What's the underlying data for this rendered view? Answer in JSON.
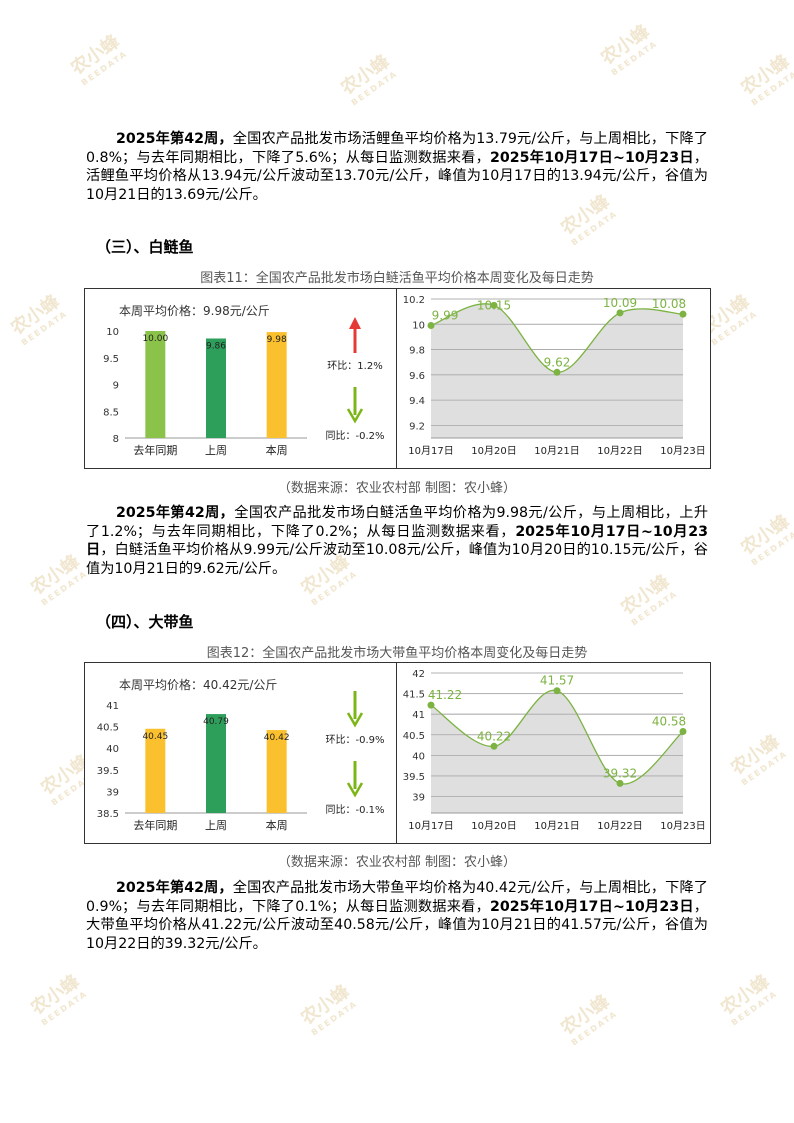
{
  "watermark": {
    "text": "农小蜂",
    "sub": "BEEDATA"
  },
  "para1": {
    "lead": "2025年第42周，",
    "t1": "全国农产品批发市场活鲤鱼平均价格为13.79元/公斤，与上周相比，下降了0.8%；与去年同期相比，下降了5.6%；从每日监测数据来看，",
    "range": "2025年10月17日~10月23日",
    "t2": "，活鲤鱼平均价格从13.94元/公斤波动至13.70元/公斤，峰值为10月17日的13.94元/公斤，谷值为10月21日的13.69元/公斤。"
  },
  "section3": {
    "heading": "（三）、白鲢鱼",
    "caption": "图表11：全国农产品批发市场白鲢活鱼平均价格本周变化及每日走势",
    "source": "（数据来源：农业农村部   制图：农小蜂）",
    "para": {
      "lead": "2025年第42周，",
      "t1": "全国农产品批发市场白鲢活鱼平均价格为9.98元/公斤，与上周相比，上升了1.2%；与去年同期相比，下降了0.2%；从每日监测数据来看，",
      "range": "2025年10月17日~10月23日",
      "t2": "，白鲢活鱼平均价格从9.99元/公斤波动至10.08元/公斤，峰值为10月20日的10.15元/公斤，谷值为10月21日的9.62元/公斤。"
    }
  },
  "section4": {
    "heading": "（四）、大带鱼",
    "caption": "图表12：全国农产品批发市场大带鱼平均价格本周变化及每日走势",
    "source": "（数据来源：农业农村部   制图：农小蜂）",
    "para": {
      "lead": "2025年第42周，",
      "t1": "全国农产品批发市场大带鱼平均价格为40.42元/公斤，与上周相比，下降了0.9%；与去年同期相比，下降了0.1%；从每日监测数据来看，",
      "range": "2025年10月17日~10月23日",
      "t2": "，大带鱼平均价格从41.22元/公斤波动至40.58元/公斤，峰值为10月21日的41.57元/公斤，谷值为10月22日的39.32元/公斤。"
    }
  },
  "chart_data": [
    {
      "type": "bar",
      "title": "本周平均价格：9.98元/公斤",
      "categories": [
        "去年同期",
        "上周",
        "本周"
      ],
      "values": [
        10.0,
        9.86,
        9.98
      ],
      "labels": [
        "10.00",
        "9.86",
        "9.98"
      ],
      "ylim": [
        8,
        10
      ],
      "yticks": [
        8,
        8.5,
        9,
        9.5,
        10
      ],
      "colors": [
        "#8bc34a",
        "#2e9e5b",
        "#fbc02d"
      ],
      "indicators": [
        {
          "label": "环比：1.2%",
          "dir": "up",
          "color": "#e53935"
        },
        {
          "label": "同比：-0.2%",
          "dir": "down",
          "color": "#7cb518"
        }
      ]
    },
    {
      "type": "area",
      "categories": [
        "10月17日",
        "10月20日",
        "10月21日",
        "10月22日",
        "10月23日"
      ],
      "values": [
        9.99,
        10.15,
        9.62,
        10.09,
        10.08
      ],
      "labels": [
        "9.99",
        "10.15",
        "9.62",
        "10.09",
        "10.08"
      ],
      "ylim": [
        9.1,
        10.2
      ],
      "yticks": [
        9.2,
        9.4,
        9.6,
        9.8,
        10,
        10.2
      ],
      "color": "#7cb342"
    },
    {
      "type": "bar",
      "title": "本周平均价格：40.42元/公斤",
      "categories": [
        "去年同期",
        "上周",
        "本周"
      ],
      "values": [
        40.45,
        40.79,
        40.42
      ],
      "labels": [
        "40.45",
        "40.79",
        "40.42"
      ],
      "ylim": [
        38.5,
        41
      ],
      "yticks": [
        38.5,
        39,
        39.5,
        40,
        40.5,
        41
      ],
      "colors": [
        "#fbc02d",
        "#2e9e5b",
        "#fbc02d"
      ],
      "indicators": [
        {
          "label": "环比：-0.9%",
          "dir": "down",
          "color": "#7cb518"
        },
        {
          "label": "同比：-0.1%",
          "dir": "down",
          "color": "#7cb518"
        }
      ]
    },
    {
      "type": "area",
      "categories": [
        "10月17日",
        "10月20日",
        "10月21日",
        "10月22日",
        "10月23日"
      ],
      "values": [
        41.22,
        40.22,
        41.57,
        39.32,
        40.58
      ],
      "labels": [
        "41.22",
        "40.22",
        "41.57",
        "39.32",
        "40.58"
      ],
      "ylim": [
        38.6,
        42
      ],
      "yticks": [
        39,
        39.5,
        40,
        40.5,
        41,
        41.5,
        42
      ],
      "color": "#7cb342"
    }
  ]
}
